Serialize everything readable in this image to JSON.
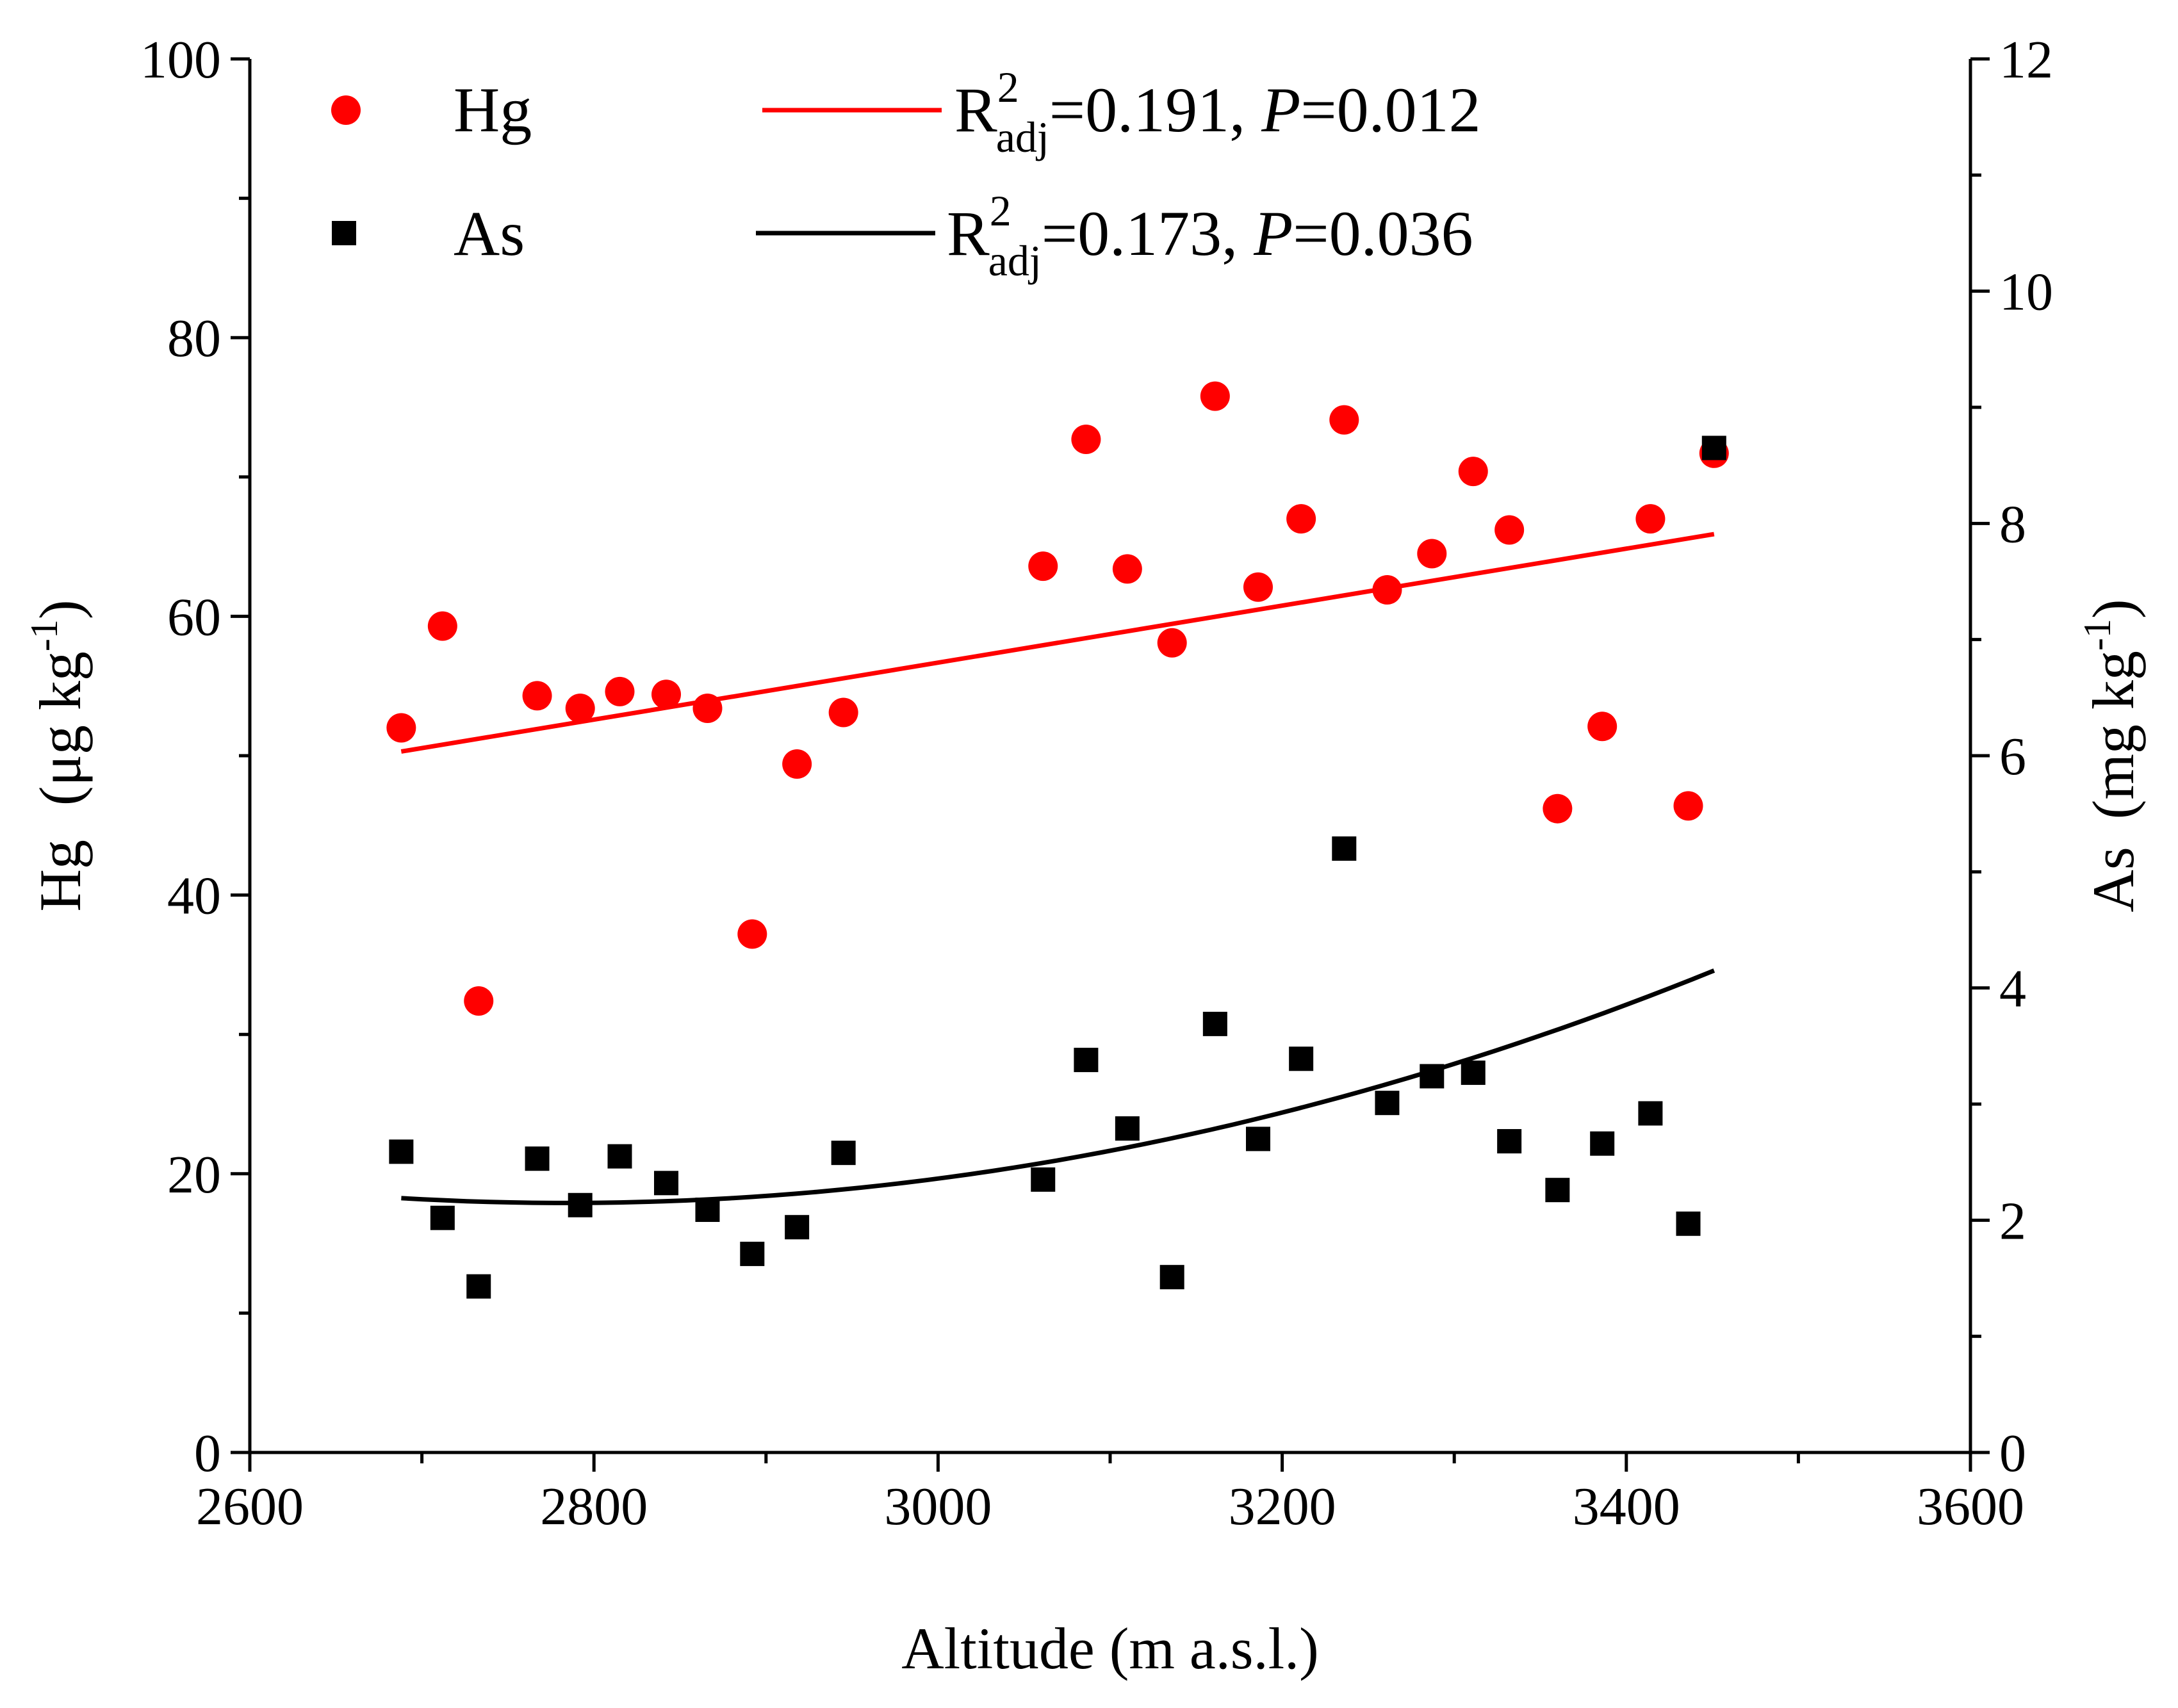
{
  "chart_data": {
    "type": "scatter",
    "xlabel": "Altitude (m a.s.l.)",
    "ylabel_left": {
      "symbol": "Hg",
      "unit": "(μg kg",
      "exp": "-1",
      "close": ")"
    },
    "ylabel_right": {
      "symbol": "As",
      "unit": "(mg kg",
      "exp": "-1",
      "close": ")"
    },
    "xlim": [
      2600,
      3600
    ],
    "ylim_left": [
      0,
      100
    ],
    "ylim_right": [
      0,
      12
    ],
    "x_ticks": [
      "2600",
      "2800",
      "3000",
      "3200",
      "3400",
      "3600"
    ],
    "y_left_ticks": [
      "0",
      "20",
      "40",
      "60",
      "80",
      "100"
    ],
    "y_right_ticks": [
      "0",
      "2",
      "4",
      "6",
      "8",
      "10",
      "12"
    ],
    "legend": {
      "placement": "top",
      "entries": [
        {
          "marker": "circle",
          "label": "Hg"
        },
        {
          "marker": "square",
          "label": "As"
        }
      ],
      "fits": [
        {
          "r": "R",
          "sup": "2",
          "sub": "adj",
          "r2": "=0.191, ",
          "p": "P",
          "pv": "=0.012"
        },
        {
          "r": "R",
          "sup": "2",
          "sub": "adj",
          "r2": "=0.173, ",
          "p": "P",
          "pv": "=0.036"
        }
      ]
    },
    "series": [
      {
        "name": "Hg",
        "axis": "left",
        "marker": "circle",
        "color": "#ff0000",
        "points": [
          [
            2688,
            52
          ],
          [
            2712,
            59.3
          ],
          [
            2733,
            32.4
          ],
          [
            2767,
            54.3
          ],
          [
            2792,
            53.4
          ],
          [
            2815,
            54.6
          ],
          [
            2842,
            54.4
          ],
          [
            2866,
            53.4
          ],
          [
            2892,
            37.2
          ],
          [
            2918,
            49.4
          ],
          [
            2945,
            53.1
          ],
          [
            3061,
            63.6
          ],
          [
            3086,
            72.7
          ],
          [
            3110,
            63.4
          ],
          [
            3136,
            58.1
          ],
          [
            3161,
            75.8
          ],
          [
            3186,
            62.1
          ],
          [
            3211,
            67
          ],
          [
            3236,
            74.1
          ],
          [
            3261,
            61.9
          ],
          [
            3287,
            64.5
          ],
          [
            3311,
            70.4
          ],
          [
            3332,
            66.2
          ],
          [
            3360,
            46.2
          ],
          [
            3386,
            52.1
          ],
          [
            3414,
            67
          ],
          [
            3436,
            46.4
          ],
          [
            3451,
            71.7
          ]
        ]
      },
      {
        "name": "As",
        "axis": "right",
        "marker": "square",
        "color": "#000000",
        "points": [
          [
            2688,
            2.59
          ],
          [
            2712,
            2.02
          ],
          [
            2733,
            1.43
          ],
          [
            2767,
            2.53
          ],
          [
            2792,
            2.13
          ],
          [
            2815,
            2.55
          ],
          [
            2842,
            2.32
          ],
          [
            2866,
            2.09
          ],
          [
            2892,
            1.71
          ],
          [
            2918,
            1.94
          ],
          [
            2945,
            2.58
          ],
          [
            3061,
            2.35
          ],
          [
            3086,
            3.38
          ],
          [
            3110,
            2.79
          ],
          [
            3136,
            1.51
          ],
          [
            3161,
            3.69
          ],
          [
            3186,
            2.7
          ],
          [
            3211,
            3.39
          ],
          [
            3236,
            5.2
          ],
          [
            3261,
            3.01
          ],
          [
            3287,
            3.24
          ],
          [
            3311,
            3.27
          ],
          [
            3332,
            2.68
          ],
          [
            3360,
            2.26
          ],
          [
            3386,
            2.66
          ],
          [
            3414,
            2.92
          ],
          [
            3436,
            1.97
          ],
          [
            3451,
            8.65
          ]
        ]
      }
    ],
    "fit_lines": [
      {
        "series": "Hg",
        "axis": "left",
        "color": "#ff0000",
        "kind": "linear",
        "x_range": [
          2688,
          3451
        ],
        "y_start": 50.3,
        "y_end": 65.9
      },
      {
        "series": "As",
        "axis": "right",
        "color": "#000000",
        "kind": "quadratic",
        "x_range": [
          2688,
          3451
        ],
        "anchors": [
          [
            2688,
            2.19
          ],
          [
            2766,
            2.15
          ],
          [
            3451,
            4.15
          ]
        ]
      }
    ]
  }
}
